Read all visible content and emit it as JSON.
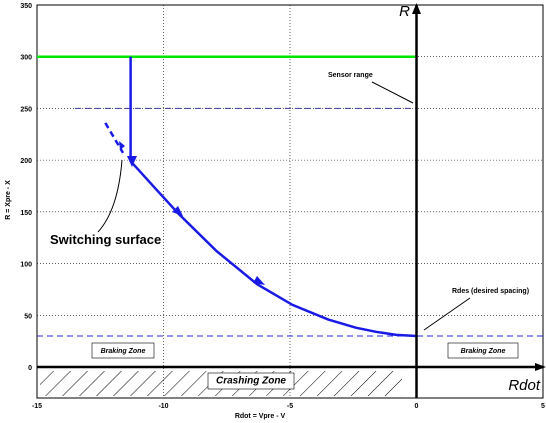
{
  "chart_data": {
    "type": "line",
    "xlabel": "Rdot  = Vpre - V",
    "ylabel": "R = Xpre - X",
    "xlim": [
      -15,
      5
    ],
    "ylim": [
      -30,
      350
    ],
    "xticks": [
      -15,
      -10,
      -5,
      0,
      5
    ],
    "yticks": [
      0,
      50,
      100,
      150,
      200,
      250,
      300,
      350
    ],
    "grid": true,
    "series": [
      {
        "x": [
          -15,
          0
        ],
        "values": [
          300,
          300
        ],
        "color": "#00e600",
        "dashed": false,
        "width": 2.5
      },
      {
        "x": [
          -13.5,
          0
        ],
        "values": [
          250,
          250
        ],
        "color": "#3a3aa0",
        "dashed": true,
        "width": 1
      },
      {
        "x": [
          -15,
          5
        ],
        "values": [
          30,
          30
        ],
        "color": "#2a2ae0",
        "dashed": true,
        "width": 1
      },
      {
        "x": [
          -11.3,
          -11.3,
          -10.3,
          -9.4,
          -7.9,
          -6.3,
          -4.9,
          -3.5,
          -2.4,
          -1.6,
          -0.8,
          0
        ],
        "values": [
          300,
          199,
          172,
          148,
          112,
          80,
          60,
          46,
          38,
          34,
          31,
          30
        ],
        "color": "#1a1ae6",
        "dashed": false,
        "width": 2.5
      },
      {
        "x": [
          -12.3,
          -11.6
        ],
        "values": [
          236,
          207
        ],
        "color": "#1a1ae6",
        "dashed": true,
        "width": 2.5
      }
    ],
    "annotations": {
      "r_axis": "R",
      "rdot_axis": "Rdot",
      "sensor_range": "Sensor range",
      "rdes": "Rdes (desired spacing)",
      "switching_surface": "Switching surface",
      "braking_left": "Braking Zone",
      "braking_right": "Braking Zone",
      "crashing": "Crashing Zone"
    }
  }
}
